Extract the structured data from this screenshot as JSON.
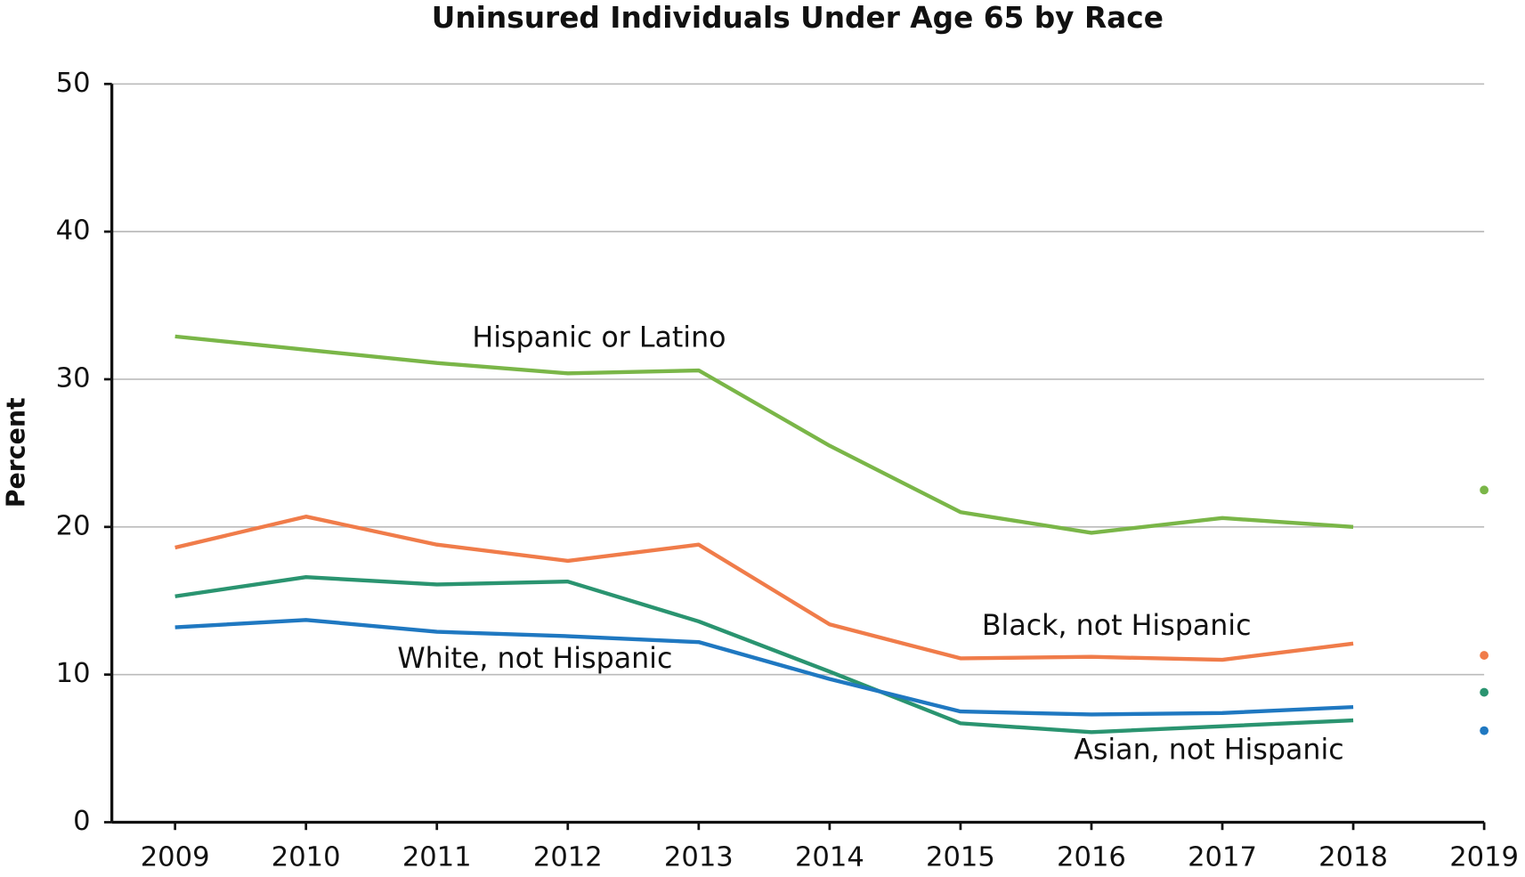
{
  "chart_data": {
    "type": "line",
    "title": "Uninsured Individuals Under Age 65 by Race",
    "y_label": "Percent",
    "categories": [
      "2009",
      "2010",
      "2011",
      "2012",
      "2013",
      "2014",
      "2015",
      "2016",
      "2017",
      "2018",
      "2019"
    ],
    "last_as_point": true,
    "series": [
      {
        "name": "Hispanic or Latino",
        "color": "#7ab648",
        "values": [
          32.9,
          32.0,
          31.1,
          30.4,
          30.6,
          25.5,
          21.0,
          19.6,
          20.6,
          20.0,
          22.5
        ]
      },
      {
        "name": "Black, not Hispanic",
        "color": "#f07c4a",
        "values": [
          18.6,
          20.7,
          18.8,
          17.7,
          18.8,
          13.4,
          11.1,
          11.2,
          11.0,
          12.1,
          11.3
        ]
      },
      {
        "name": "Asian, not Hispanic",
        "color": "#2a9470",
        "values": [
          15.3,
          16.6,
          16.1,
          16.3,
          13.6,
          10.2,
          6.7,
          6.1,
          6.5,
          6.9,
          8.8
        ]
      },
      {
        "name": "White, not Hispanic",
        "color": "#1f78c1",
        "values": [
          13.2,
          13.7,
          12.9,
          12.6,
          12.2,
          9.7,
          7.5,
          7.3,
          7.4,
          7.8,
          6.2
        ]
      }
    ],
    "ylim": [
      0,
      50
    ],
    "yticks": [
      0,
      10,
      20,
      30,
      40,
      50
    ],
    "grid": true
  }
}
